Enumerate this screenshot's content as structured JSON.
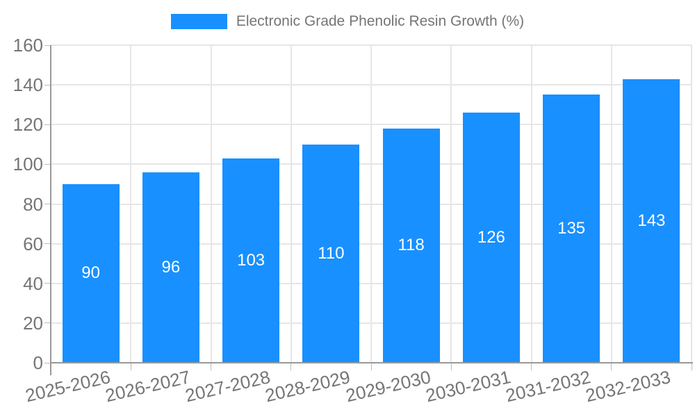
{
  "legend": {
    "label": "Electronic Grade Phenolic Resin Growth (%)"
  },
  "chart_data": {
    "type": "bar",
    "title": "Electronic Grade Phenolic Resin Growth (%)",
    "categories": [
      "2025-2026",
      "2026-2027",
      "2027-2028",
      "2028-2029",
      "2029-2030",
      "2030-2031",
      "2031-2032",
      "2032-2033"
    ],
    "values": [
      90,
      96,
      103,
      110,
      118,
      126,
      135,
      143
    ],
    "xlabel": "",
    "ylabel": "",
    "ylim": [
      0,
      160
    ],
    "ytick_step": 20,
    "yticks": [
      0,
      20,
      40,
      60,
      80,
      100,
      120,
      140,
      160
    ],
    "grid": true,
    "legend_position": "top-center",
    "value_labels": "inside-center",
    "x_label_rotation_deg": -13,
    "colors": {
      "bar": "#1890ff",
      "value_label": "#ffffff",
      "axis_text": "#757575",
      "legend_text": "#757575",
      "gridline": "#e6e6e6",
      "axis_line": "#999999",
      "tick_mark": "#bbbbbb",
      "background": "#ffffff"
    }
  }
}
